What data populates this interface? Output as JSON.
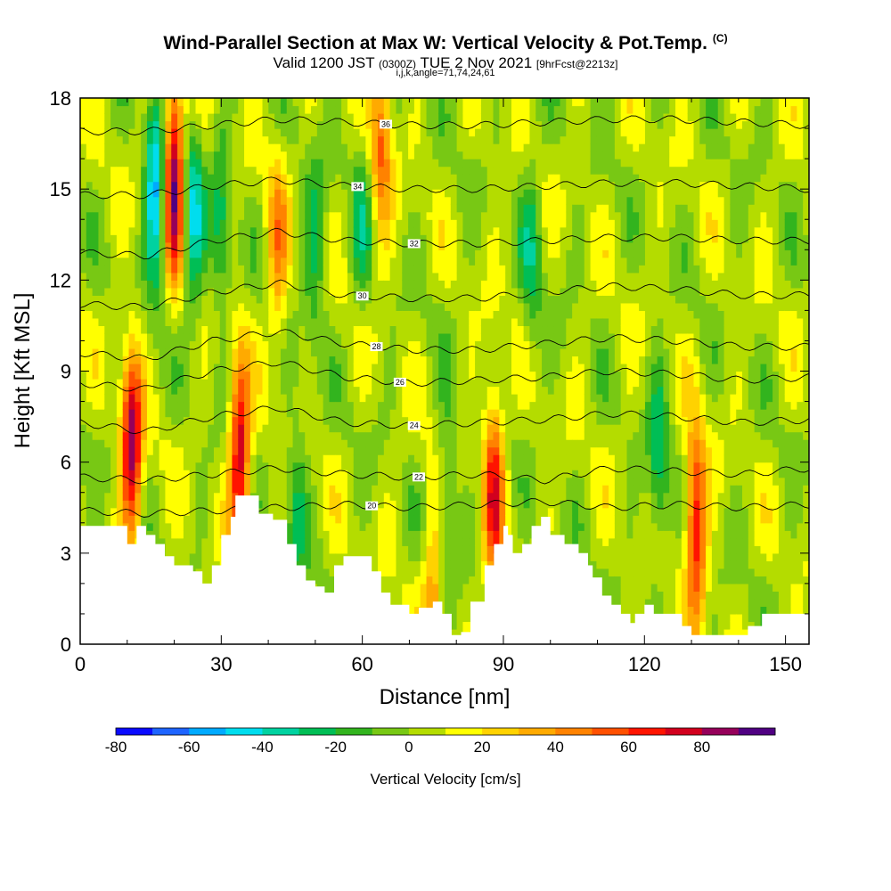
{
  "header": {
    "title": "Wind-Parallel Section at Max W: Vertical Velocity & Pot.Temp.",
    "title_mark": "(C)",
    "valid_prefix": "Valid 1200 JST",
    "valid_utc": "(0300Z)",
    "valid_date": "TUE 2 Nov 2021",
    "forecast": "[9hrFcst@2213z]",
    "indices": "i,j,k,angle=71,74,24,61"
  },
  "chart_data": {
    "type": "heatmap",
    "xlabel": "Distance [nm]",
    "ylabel": "Height [Kft MSL]",
    "xlim": [
      0,
      155
    ],
    "ylim": [
      0,
      18
    ],
    "x_ticks": [
      0,
      30,
      60,
      90,
      120,
      150
    ],
    "y_ticks": [
      0,
      3,
      6,
      9,
      12,
      15,
      18
    ],
    "colorbar": {
      "title": "Vertical Velocity [cm/s]",
      "ticks": [
        -80,
        -60,
        -40,
        -20,
        0,
        20,
        40,
        60,
        80
      ],
      "levels": [
        -80,
        -70,
        -60,
        -50,
        -40,
        -30,
        -20,
        -10,
        0,
        10,
        20,
        30,
        40,
        50,
        60,
        70,
        80,
        90
      ],
      "colors": [
        "#0a0aff",
        "#1e64ff",
        "#00aaff",
        "#00ddee",
        "#00d2a0",
        "#00be55",
        "#32b41e",
        "#78c814",
        "#b4dc00",
        "#ffff00",
        "#ffd200",
        "#ffaa00",
        "#ff8200",
        "#ff5000",
        "#ff1400",
        "#d2001e",
        "#96005a",
        "#500082"
      ]
    },
    "updrafts": [
      {
        "x": 11,
        "z": 6.5,
        "w": 82
      },
      {
        "x": 20,
        "z": 15.5,
        "w": 90
      },
      {
        "x": 34,
        "z": 6.3,
        "w": 75
      },
      {
        "x": 88,
        "z": 5.2,
        "w": 62
      },
      {
        "x": 131,
        "z": 4.0,
        "w": 68
      },
      {
        "x": 64,
        "z": 16.5,
        "w": 45
      },
      {
        "x": 42,
        "z": 13,
        "w": 35
      },
      {
        "x": 75,
        "z": 1.5,
        "w": 35
      }
    ],
    "downdrafts": [
      {
        "x": 16,
        "z": 15,
        "w": -58
      },
      {
        "x": 24,
        "z": 14,
        "w": -42
      },
      {
        "x": 30,
        "z": 14,
        "w": -28
      },
      {
        "x": 50,
        "z": 13,
        "w": -25
      },
      {
        "x": 60,
        "z": 14,
        "w": -22
      },
      {
        "x": 96,
        "z": 13,
        "w": -25
      },
      {
        "x": 123,
        "z": 6,
        "w": -30
      },
      {
        "x": 46,
        "z": 4.5,
        "w": -24
      },
      {
        "x": 78,
        "z": 5,
        "w": -22
      }
    ],
    "terrain": [
      [
        0,
        3.9
      ],
      [
        8,
        3.9
      ],
      [
        10,
        3.3
      ],
      [
        12,
        3.9
      ],
      [
        14,
        3.6
      ],
      [
        16,
        3.3
      ],
      [
        18,
        2.9
      ],
      [
        20,
        2.6
      ],
      [
        24,
        2.4
      ],
      [
        26,
        2.0
      ],
      [
        28,
        2.6
      ],
      [
        30,
        3.6
      ],
      [
        32,
        4.2
      ],
      [
        33,
        4.9
      ],
      [
        36,
        4.9
      ],
      [
        38,
        4.3
      ],
      [
        41,
        4.1
      ],
      [
        44,
        3.3
      ],
      [
        46,
        2.6
      ],
      [
        48,
        2.1
      ],
      [
        50,
        1.9
      ],
      [
        52,
        1.7
      ],
      [
        54,
        2.6
      ],
      [
        56,
        2.9
      ],
      [
        60,
        2.9
      ],
      [
        62,
        2.4
      ],
      [
        64,
        1.7
      ],
      [
        66,
        1.3
      ],
      [
        68,
        1.3
      ],
      [
        70,
        1.0
      ],
      [
        72,
        1.2
      ],
      [
        75,
        1.4
      ],
      [
        77,
        1.0
      ],
      [
        79,
        0.3
      ],
      [
        81,
        0.4
      ],
      [
        83,
        1.4
      ],
      [
        86,
        2.6
      ],
      [
        88,
        3.3
      ],
      [
        90,
        3.9
      ],
      [
        91,
        3.6
      ],
      [
        92,
        3.0
      ],
      [
        94,
        3.3
      ],
      [
        96,
        3.9
      ],
      [
        98,
        4.2
      ],
      [
        100,
        3.6
      ],
      [
        103,
        3.3
      ],
      [
        106,
        3.0
      ],
      [
        108,
        2.6
      ],
      [
        109,
        2.2
      ],
      [
        111,
        1.6
      ],
      [
        113,
        1.3
      ],
      [
        115,
        1.0
      ],
      [
        117,
        0.7
      ],
      [
        118,
        1.0
      ],
      [
        120,
        1.3
      ],
      [
        122,
        1.0
      ],
      [
        126,
        1.0
      ],
      [
        128,
        0.6
      ],
      [
        130,
        0.3
      ],
      [
        138,
        0.3
      ],
      [
        142,
        0.6
      ],
      [
        145,
        1.0
      ],
      [
        155,
        1.0
      ]
    ],
    "theta_contours": [
      {
        "label": "20",
        "heights": [
          4.4,
          4.3,
          4.4,
          4.5,
          4.6,
          4.5,
          4.6,
          4.7,
          4.5,
          4.6,
          4.5,
          4.6
        ],
        "label_x": 62
      },
      {
        "label": "22",
        "heights": [
          5.5,
          5.4,
          5.6,
          5.8,
          5.6,
          5.5,
          5.6,
          5.4,
          5.8,
          5.7,
          5.6,
          5.8
        ],
        "label_x": 72
      },
      {
        "label": "24",
        "heights": [
          7.3,
          7.0,
          7.5,
          7.8,
          7.3,
          7.2,
          7.3,
          7.4,
          7.6,
          7.5,
          7.3,
          7.4
        ],
        "label_x": 71
      },
      {
        "label": "26",
        "heights": [
          8.6,
          8.4,
          9.0,
          9.3,
          8.8,
          8.6,
          8.7,
          8.8,
          9.0,
          8.9,
          8.7,
          8.8
        ],
        "label_x": 68
      },
      {
        "label": "28",
        "heights": [
          9.6,
          9.4,
          10.0,
          10.3,
          9.9,
          9.7,
          9.7,
          9.9,
          10.1,
          10.0,
          9.8,
          9.8
        ],
        "label_x": 63
      },
      {
        "label": "30",
        "heights": [
          11.2,
          11.1,
          11.6,
          11.9,
          11.5,
          11.4,
          11.4,
          11.6,
          11.8,
          11.7,
          11.5,
          11.5
        ],
        "label_x": 60
      },
      {
        "label": "32",
        "heights": [
          12.9,
          12.8,
          13.3,
          13.6,
          13.3,
          13.2,
          13.2,
          13.3,
          13.4,
          13.4,
          13.3,
          13.3
        ],
        "label_x": 71
      },
      {
        "label": "34",
        "heights": [
          14.8,
          14.8,
          15.1,
          15.3,
          15.1,
          15.0,
          15.0,
          15.1,
          15.2,
          15.2,
          15.1,
          15.0
        ],
        "label_x": 59
      },
      {
        "label": "36",
        "heights": [
          16.9,
          16.9,
          17.1,
          17.3,
          17.2,
          17.1,
          17.1,
          17.2,
          17.3,
          17.3,
          17.2,
          17.1
        ],
        "label_x": 65
      }
    ]
  }
}
